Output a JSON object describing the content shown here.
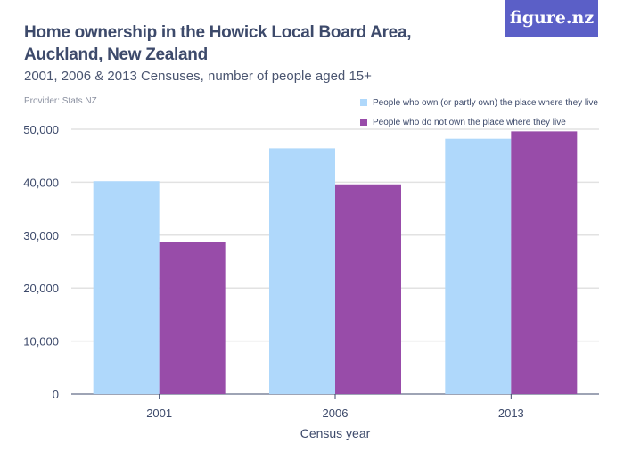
{
  "title": "Home ownership in the Howick Local Board Area, Auckland, New Zealand",
  "subtitle": "2001, 2006 & 2013 Censuses, number of people aged 15+",
  "provider": "Provider: Stats NZ",
  "logo": "figure.nz",
  "chart_data": {
    "type": "bar",
    "categories": [
      "2001",
      "2006",
      "2013"
    ],
    "series": [
      {
        "name": "People who own (or partly own) the place where they live",
        "color": "#afd8fb",
        "values": [
          40200,
          46400,
          48200
        ]
      },
      {
        "name": "People who do not own the place where they live",
        "color": "#984ca9",
        "values": [
          28700,
          39600,
          49600
        ]
      }
    ],
    "xlabel": "Census year",
    "ylabel": "",
    "ylim": [
      0,
      50000
    ],
    "yticks": [
      "0",
      "10,000",
      "20,000",
      "30,000",
      "40,000",
      "50,000"
    ],
    "grid": true,
    "legend": "top-right"
  }
}
